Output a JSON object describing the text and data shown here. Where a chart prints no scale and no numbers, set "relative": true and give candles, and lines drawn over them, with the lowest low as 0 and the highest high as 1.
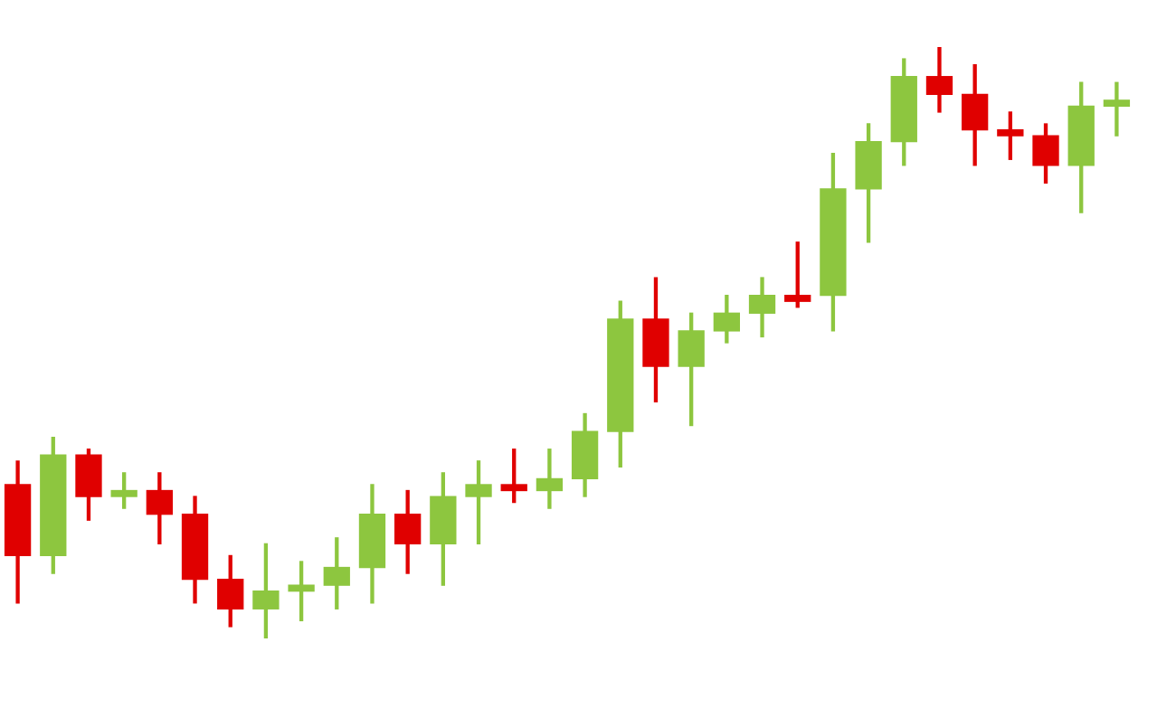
{
  "chart_data": {
    "type": "candlestick",
    "relative": true,
    "categories": [
      null,
      null,
      null,
      null,
      null,
      null,
      null,
      null,
      null,
      null,
      null,
      null,
      null,
      null,
      null,
      null,
      null,
      null,
      null,
      null,
      null,
      null,
      null,
      null,
      null,
      null,
      null,
      null,
      null,
      null,
      null,
      null
    ],
    "ohlc": [
      [
        0.26,
        0.3,
        0.06,
        0.14
      ],
      [
        0.14,
        0.34,
        0.11,
        0.31
      ],
      [
        0.31,
        0.32,
        0.2,
        0.24
      ],
      [
        0.24,
        0.28,
        0.22,
        0.25
      ],
      [
        0.25,
        0.28,
        0.16,
        0.21
      ],
      [
        0.21,
        0.24,
        0.06,
        0.1
      ],
      [
        0.1,
        0.14,
        0.02,
        0.05
      ],
      [
        0.05,
        0.16,
        0,
        0.08
      ],
      [
        0.08,
        0.13,
        0.03,
        0.09
      ],
      [
        0.09,
        0.17,
        0.05,
        0.12
      ],
      [
        0.12,
        0.26,
        0.06,
        0.21
      ],
      [
        0.21,
        0.25,
        0.11,
        0.16
      ],
      [
        0.16,
        0.28,
        0.09,
        0.24
      ],
      [
        0.24,
        0.3,
        0.16,
        0.26
      ],
      [
        0.26,
        0.32,
        0.23,
        0.25
      ],
      [
        0.25,
        0.32,
        0.22,
        0.27
      ],
      [
        0.27,
        0.38,
        0.24,
        0.35
      ],
      [
        0.35,
        0.57,
        0.29,
        0.54
      ],
      [
        0.54,
        0.61,
        0.4,
        0.46
      ],
      [
        0.46,
        0.55,
        0.36,
        0.52
      ],
      [
        0.52,
        0.58,
        0.5,
        0.55
      ],
      [
        0.55,
        0.61,
        0.51,
        0.58
      ],
      [
        0.58,
        0.67,
        0.56,
        0.57
      ],
      [
        0.58,
        0.82,
        0.52,
        0.76
      ],
      [
        0.76,
        0.87,
        0.67,
        0.84
      ],
      [
        0.84,
        0.98,
        0.8,
        0.95
      ],
      [
        0.95,
        1.0,
        0.89,
        0.92
      ],
      [
        0.92,
        0.97,
        0.8,
        0.86
      ],
      [
        0.86,
        0.89,
        0.81,
        0.85
      ],
      [
        0.85,
        0.87,
        0.77,
        0.8
      ],
      [
        0.8,
        0.94,
        0.72,
        0.9
      ],
      [
        0.9,
        0.94,
        0.85,
        0.91
      ]
    ],
    "colors": [
      "#e00000",
      "#8dc63f",
      "#e00000",
      "#8dc63f",
      "#e00000",
      "#e00000",
      "#e00000",
      "#8dc63f",
      "#8dc63f",
      "#8dc63f",
      "#8dc63f",
      "#e00000",
      "#8dc63f",
      "#8dc63f",
      "#e00000",
      "#8dc63f",
      "#8dc63f",
      "#8dc63f",
      "#e00000",
      "#8dc63f",
      "#8dc63f",
      "#8dc63f",
      "#e00000",
      "#8dc63f",
      "#8dc63f",
      "#8dc63f",
      "#e00000",
      "#e00000",
      "#e00000",
      "#e00000",
      "#8dc63f",
      "#8dc63f"
    ]
  }
}
